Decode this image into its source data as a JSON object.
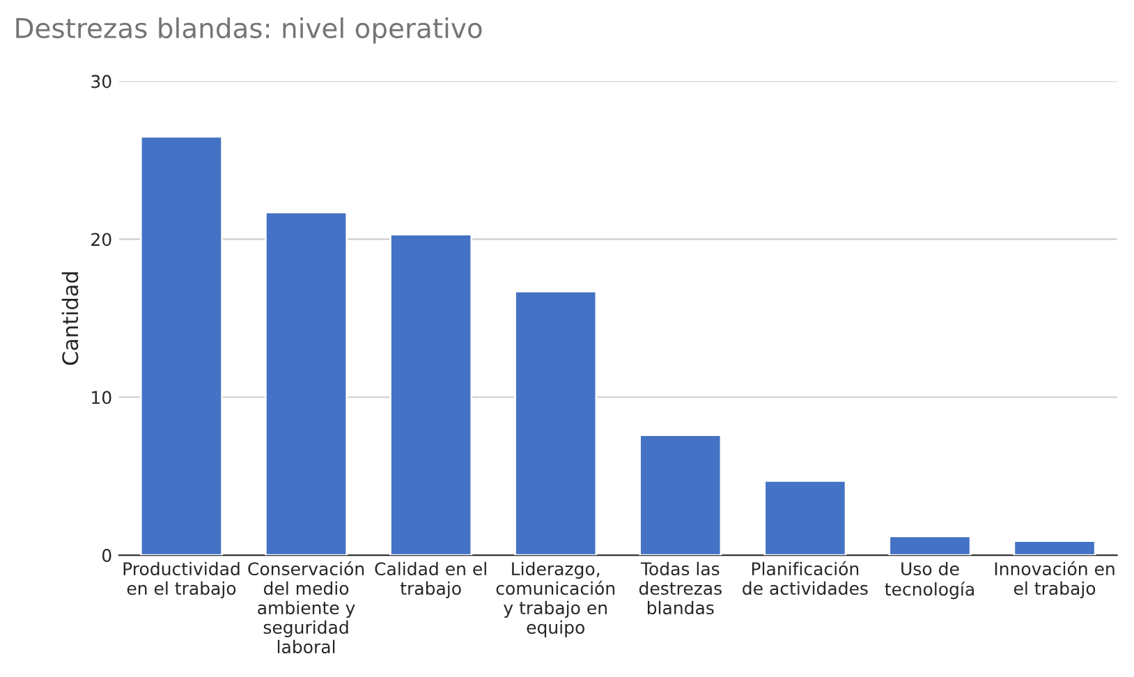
{
  "chart_data": {
    "type": "bar",
    "title": "Destrezas blandas: nivel operativo",
    "ylabel": "Cantidad",
    "categories": [
      "Productividad\nen el trabajo",
      "Conservación\ndel medio\nambiente y\nseguridad\nlaboral",
      "Calidad en el\ntrabajo",
      "Liderazgo,\ncomunicación\ny trabajo en\nequipo",
      "Todas las\ndestrezas\nblandas",
      "Planificación\nde actividades",
      "Uso de\ntecnología",
      "Innovación en\nel trabajo"
    ],
    "values": [
      26.5,
      21.7,
      20.3,
      16.7,
      7.6,
      4.7,
      1.2,
      0.9
    ],
    "color": "#4472c4",
    "ylim": [
      0,
      30
    ],
    "yticks": [
      0,
      10,
      20,
      30
    ],
    "grid": "y",
    "legend": false
  }
}
